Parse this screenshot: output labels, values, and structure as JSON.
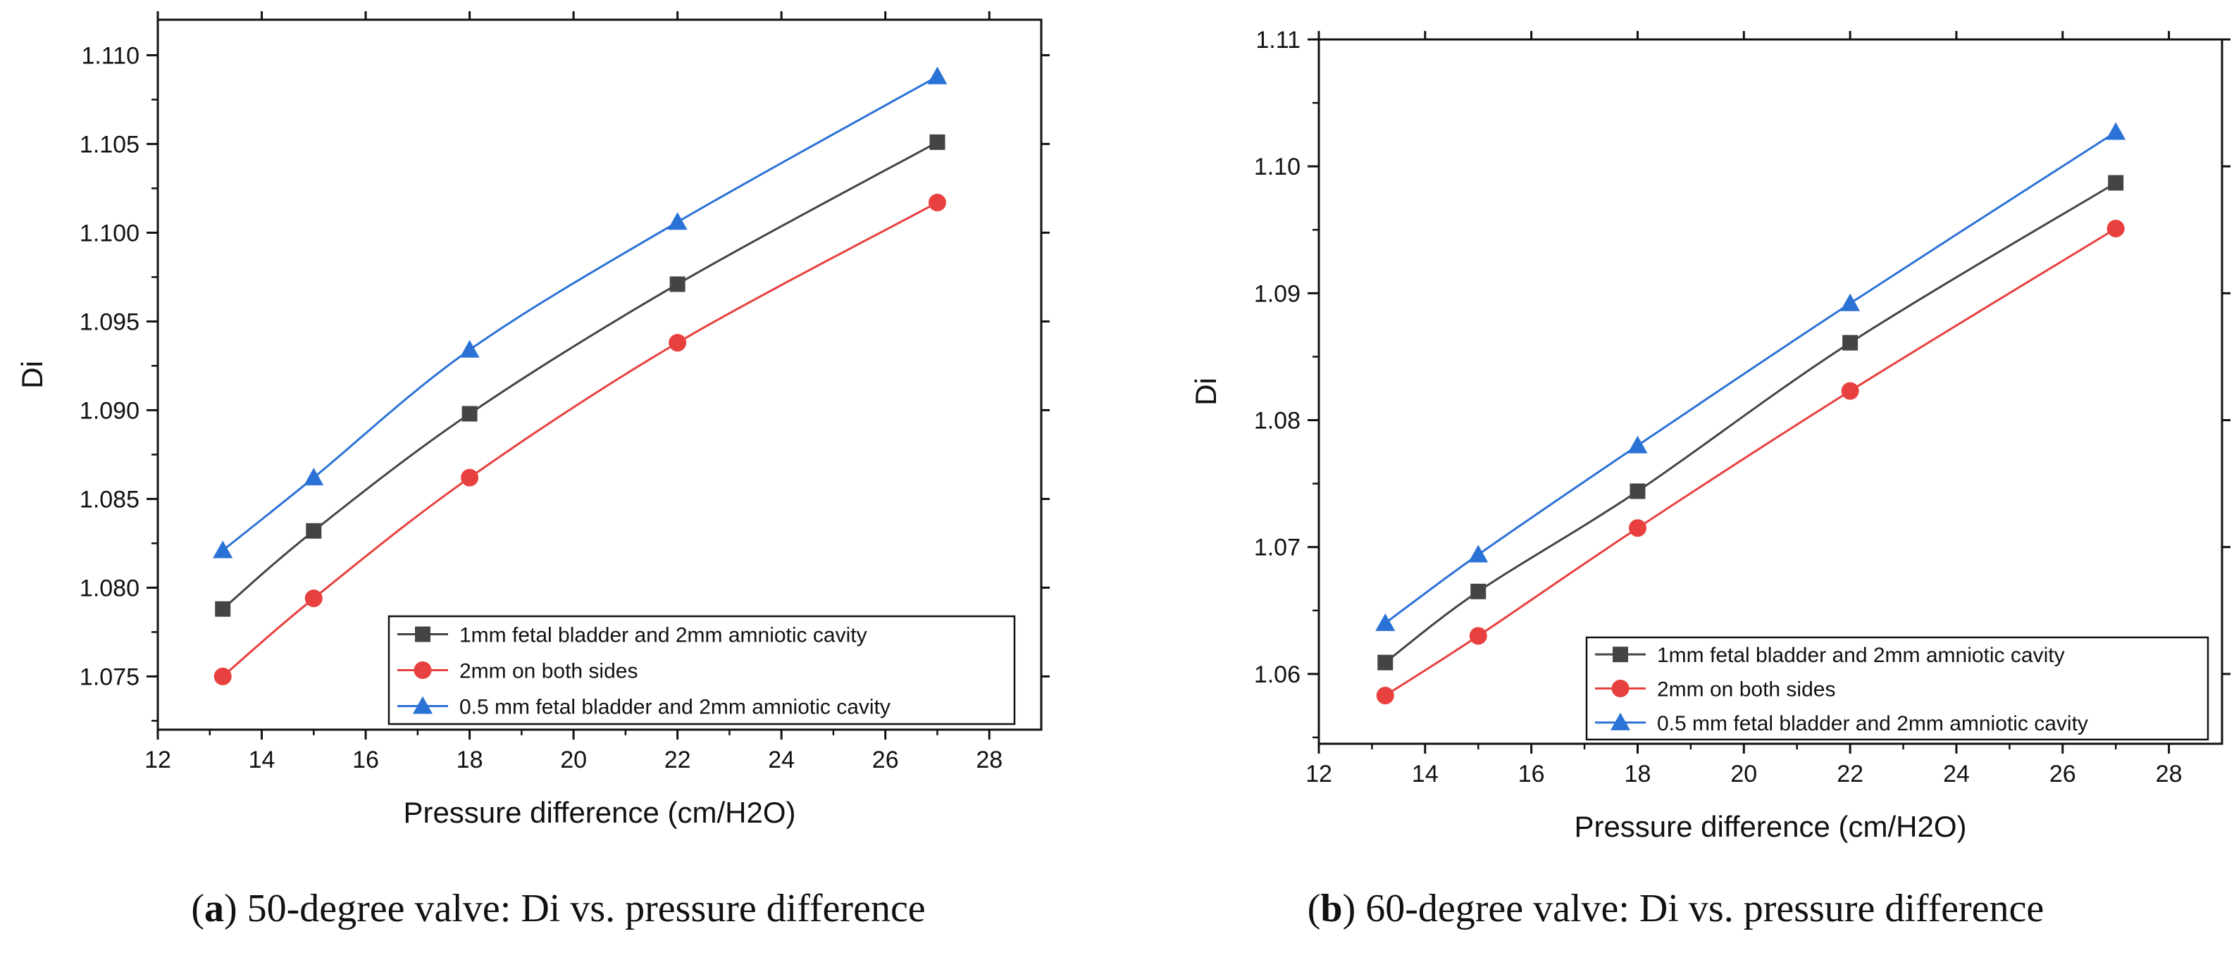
{
  "chart_data": [
    {
      "type": "line",
      "panel": "a",
      "caption_letter": "a",
      "caption_text": "50-degree valve: Di vs. pressure difference",
      "xlabel": "Pressure difference (cm/H2O)",
      "ylabel": "Di",
      "xlim": [
        12,
        29
      ],
      "ylim": [
        1.072,
        1.112
      ],
      "x_ticks": [
        "12",
        "14",
        "16",
        "18",
        "20",
        "22",
        "24",
        "26",
        "28"
      ],
      "y_ticks": [
        "1.075",
        "1.080",
        "1.085",
        "1.090",
        "1.095",
        "1.100",
        "1.105",
        "1.110"
      ],
      "x": [
        13.25,
        15,
        18,
        22,
        27
      ],
      "legend_position": "bottom-right",
      "series": [
        {
          "name": "1mm fetal bladder and 2mm amniotic cavity",
          "color": "#444444",
          "marker": "square",
          "values": [
            1.0788,
            1.0832,
            1.0898,
            1.0971,
            1.1051
          ]
        },
        {
          "name": "2mm on both sides",
          "color": "#e8403e",
          "marker": "circle",
          "values": [
            1.075,
            1.0794,
            1.0862,
            1.0938,
            1.1017
          ]
        },
        {
          "name": "0.5 mm fetal bladder and 2mm amniotic cavity",
          "color": "#2b72d6",
          "marker": "triangle",
          "values": [
            1.0821,
            1.0862,
            1.0934,
            1.1006,
            1.1088
          ]
        }
      ]
    },
    {
      "type": "line",
      "panel": "b",
      "caption_letter": "b",
      "caption_text": "60-degree valve: Di vs. pressure difference",
      "xlabel": "Pressure difference (cm/H2O)",
      "ylabel": "Di",
      "xlim": [
        12,
        29
      ],
      "ylim": [
        1.0545,
        1.11
      ],
      "x_ticks": [
        "12",
        "14",
        "16",
        "18",
        "20",
        "22",
        "24",
        "26",
        "28"
      ],
      "y_ticks": [
        "1.06",
        "1.07",
        "1.08",
        "1.09",
        "1.10",
        "1.11"
      ],
      "x": [
        13.25,
        15,
        18,
        22,
        27
      ],
      "legend_position": "bottom-right",
      "series": [
        {
          "name": "1mm fetal bladder and 2mm amniotic cavity",
          "color": "#444444",
          "marker": "square",
          "values": [
            1.0609,
            1.0665,
            1.0744,
            1.0861,
            1.0987
          ]
        },
        {
          "name": "2mm on both sides",
          "color": "#e8403e",
          "marker": "circle",
          "values": [
            1.0583,
            1.063,
            1.0715,
            1.0823,
            1.0951
          ]
        },
        {
          "name": "0.5 mm fetal bladder and 2mm amniotic cavity",
          "color": "#2b72d6",
          "marker": "triangle",
          "values": [
            1.064,
            1.0694,
            1.078,
            1.0892,
            1.1027
          ]
        }
      ]
    }
  ]
}
